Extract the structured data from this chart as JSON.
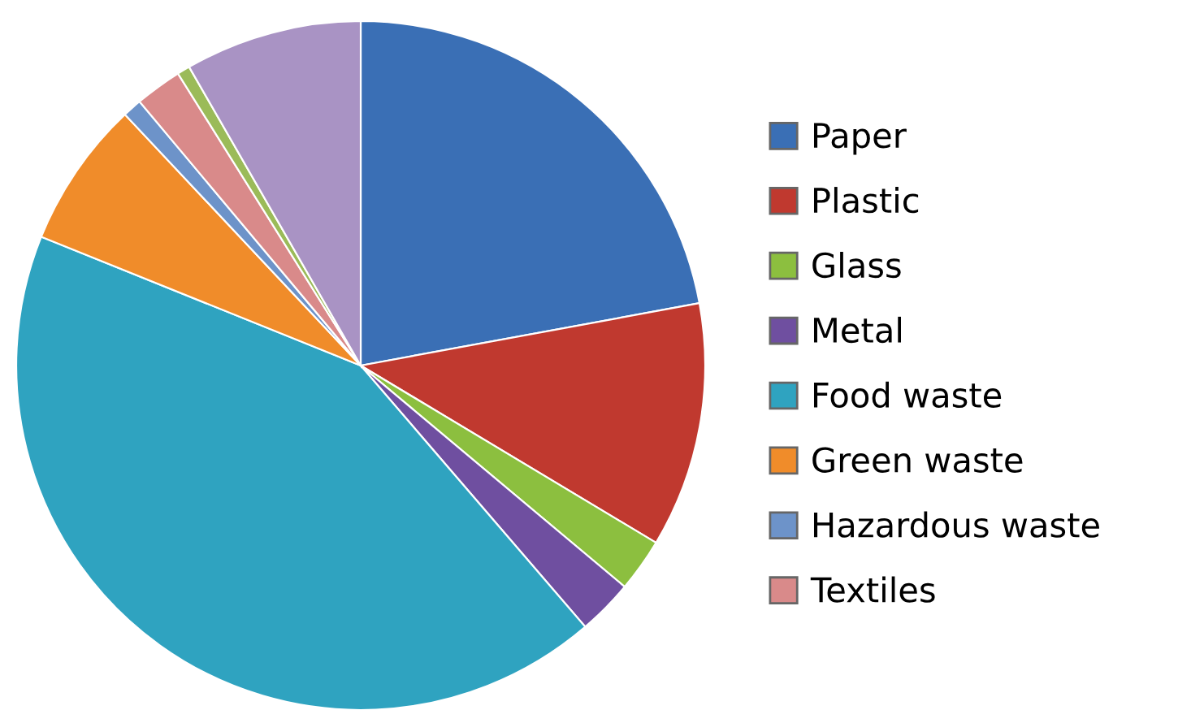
{
  "chart_data": {
    "type": "pie",
    "categories": [
      "Paper",
      "Plastic",
      "Glass",
      "Metal",
      "Food waste",
      "Green waste",
      "Hazardous waste",
      "Textiles",
      null,
      null
    ],
    "values": [
      22.1,
      11.5,
      2.5,
      2.6,
      42.4,
      6.9,
      0.9,
      2.2,
      0.6,
      8.3
    ],
    "colors": [
      "#3a6fb5",
      "#c0392f",
      "#8cbf3f",
      "#6f4fa0",
      "#2fa3c0",
      "#f08c2a",
      "#6d93c9",
      "#d98a8a",
      "#9bbb59",
      "#a993c4"
    ],
    "legend": "right"
  }
}
